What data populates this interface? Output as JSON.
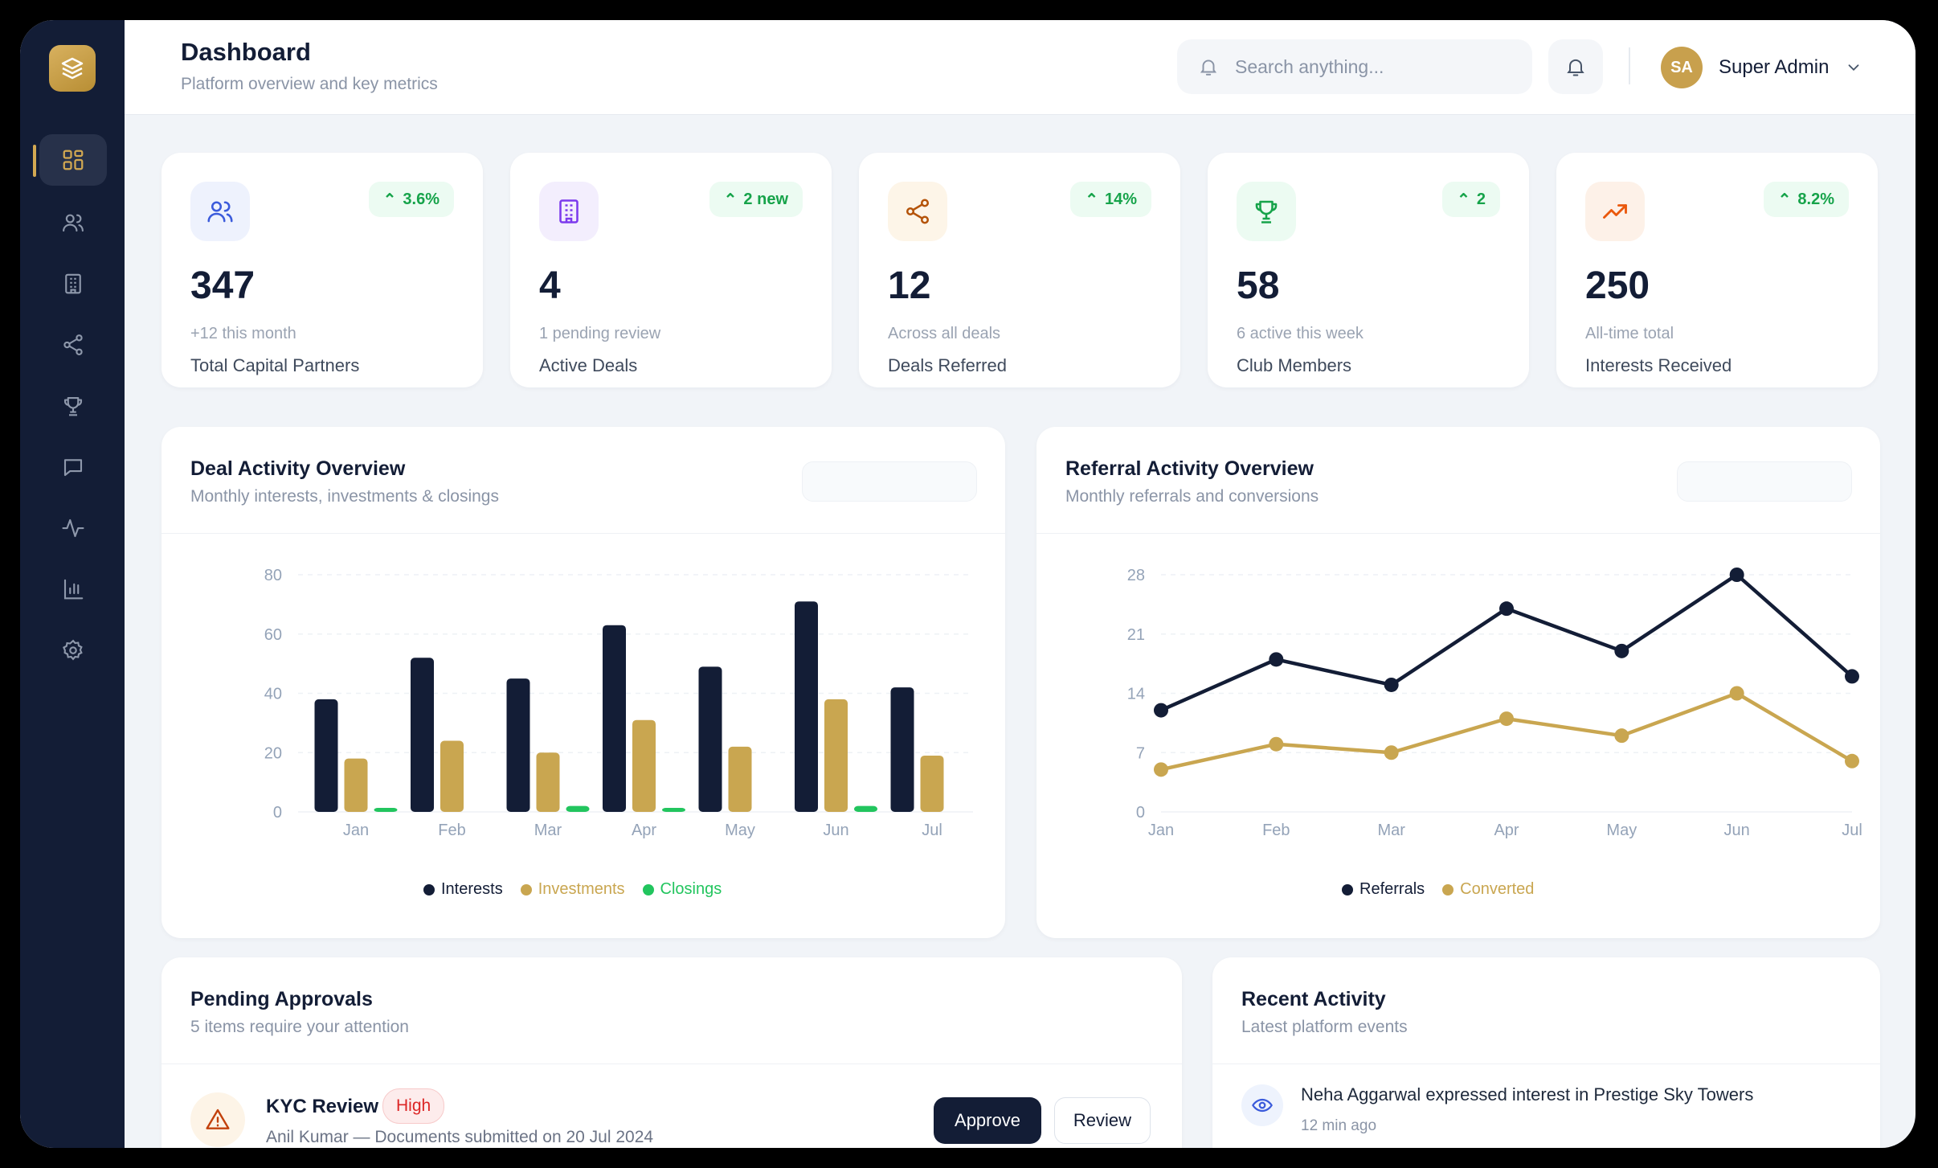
{
  "header": {
    "title": "Dashboard",
    "subtitle": "Platform overview and key metrics",
    "search_placeholder": "Search anything...",
    "user_initials": "SA",
    "user_name": "Super Admin"
  },
  "sidebar": {
    "items": [
      {
        "icon": "dashboard-grid-icon",
        "active": true
      },
      {
        "icon": "users-icon",
        "active": false
      },
      {
        "icon": "building-icon",
        "active": false
      },
      {
        "icon": "share-icon",
        "active": false
      },
      {
        "icon": "trophy-icon",
        "active": false
      },
      {
        "icon": "message-icon",
        "active": false
      },
      {
        "icon": "activity-icon",
        "active": false
      },
      {
        "icon": "bar-chart-icon",
        "active": false
      },
      {
        "icon": "settings-gear-icon",
        "active": false
      }
    ]
  },
  "stats": [
    {
      "trend": "3.6%",
      "value": "347",
      "note": "+12 this month",
      "label": "Total Capital Partners",
      "icon": "users-icon",
      "icon_color": "#3b5bdb",
      "icon_bg": "#eef2fd"
    },
    {
      "trend": "2 new",
      "value": "4",
      "note": "1 pending review",
      "label": "Active Deals",
      "icon": "building-icon",
      "icon_color": "#7c3aed",
      "icon_bg": "#f3eefd"
    },
    {
      "trend": "14%",
      "value": "12",
      "note": "Across all deals",
      "label": "Deals Referred",
      "icon": "share-icon",
      "icon_color": "#b45309",
      "icon_bg": "#fdf5e8"
    },
    {
      "trend": "2",
      "value": "58",
      "note": "6 active this week",
      "label": "Club Members",
      "icon": "trophy-icon",
      "icon_color": "#16a34a",
      "icon_bg": "#ecfbf2"
    },
    {
      "trend": "8.2%",
      "value": "250",
      "note": "All-time total",
      "label": "Interests Received",
      "icon": "trending-up-icon",
      "icon_color": "#ea580c",
      "icon_bg": "#fdf1e8"
    }
  ],
  "deal_chart": {
    "title": "Deal Activity Overview",
    "subtitle": "Monthly interests, investments & closings"
  },
  "referral_chart": {
    "title": "Referral Activity Overview",
    "subtitle": "Monthly referrals and conversions"
  },
  "chart_data": [
    {
      "type": "bar",
      "title": "Deal Activity Overview",
      "categories": [
        "Jan",
        "Feb",
        "Mar",
        "Apr",
        "May",
        "Jun",
        "Jul"
      ],
      "ylim": [
        0,
        80
      ],
      "yticks": [
        0,
        20,
        40,
        60,
        80
      ],
      "series": [
        {
          "name": "Interests",
          "color": "#131d36",
          "values": [
            38,
            52,
            45,
            63,
            49,
            71,
            42
          ]
        },
        {
          "name": "Investments",
          "color": "#c9a650",
          "values": [
            18,
            24,
            20,
            31,
            22,
            38,
            19
          ]
        },
        {
          "name": "Closings",
          "color": "#22c55e",
          "values": [
            1,
            0,
            2,
            1,
            0,
            2,
            0
          ]
        }
      ],
      "legend": "bottom",
      "grid": true
    },
    {
      "type": "line",
      "title": "Referral Activity Overview",
      "categories": [
        "Jan",
        "Feb",
        "Mar",
        "Apr",
        "May",
        "Jun",
        "Jul"
      ],
      "ylim": [
        0,
        28
      ],
      "yticks": [
        0,
        7,
        14,
        21,
        28
      ],
      "series": [
        {
          "name": "Referrals",
          "color": "#131d36",
          "values": [
            12,
            18,
            15,
            24,
            19,
            28,
            16
          ]
        },
        {
          "name": "Converted",
          "color": "#c9a650",
          "values": [
            5,
            8,
            7,
            11,
            9,
            14,
            6
          ]
        }
      ],
      "legend": "bottom",
      "grid": true
    }
  ],
  "pending": {
    "title": "Pending Approvals",
    "subtitle": "5 items require your attention",
    "item": {
      "title": "KYC Review",
      "priority": "High",
      "desc": "Anil Kumar — Documents submitted on 20 Jul 2024",
      "approve_label": "Approve",
      "review_label": "Review"
    }
  },
  "activity": {
    "title": "Recent Activity",
    "subtitle": "Latest platform events",
    "item": {
      "text": "Neha Aggarwal expressed interest in Prestige Sky Towers",
      "time": "12 min ago"
    }
  }
}
